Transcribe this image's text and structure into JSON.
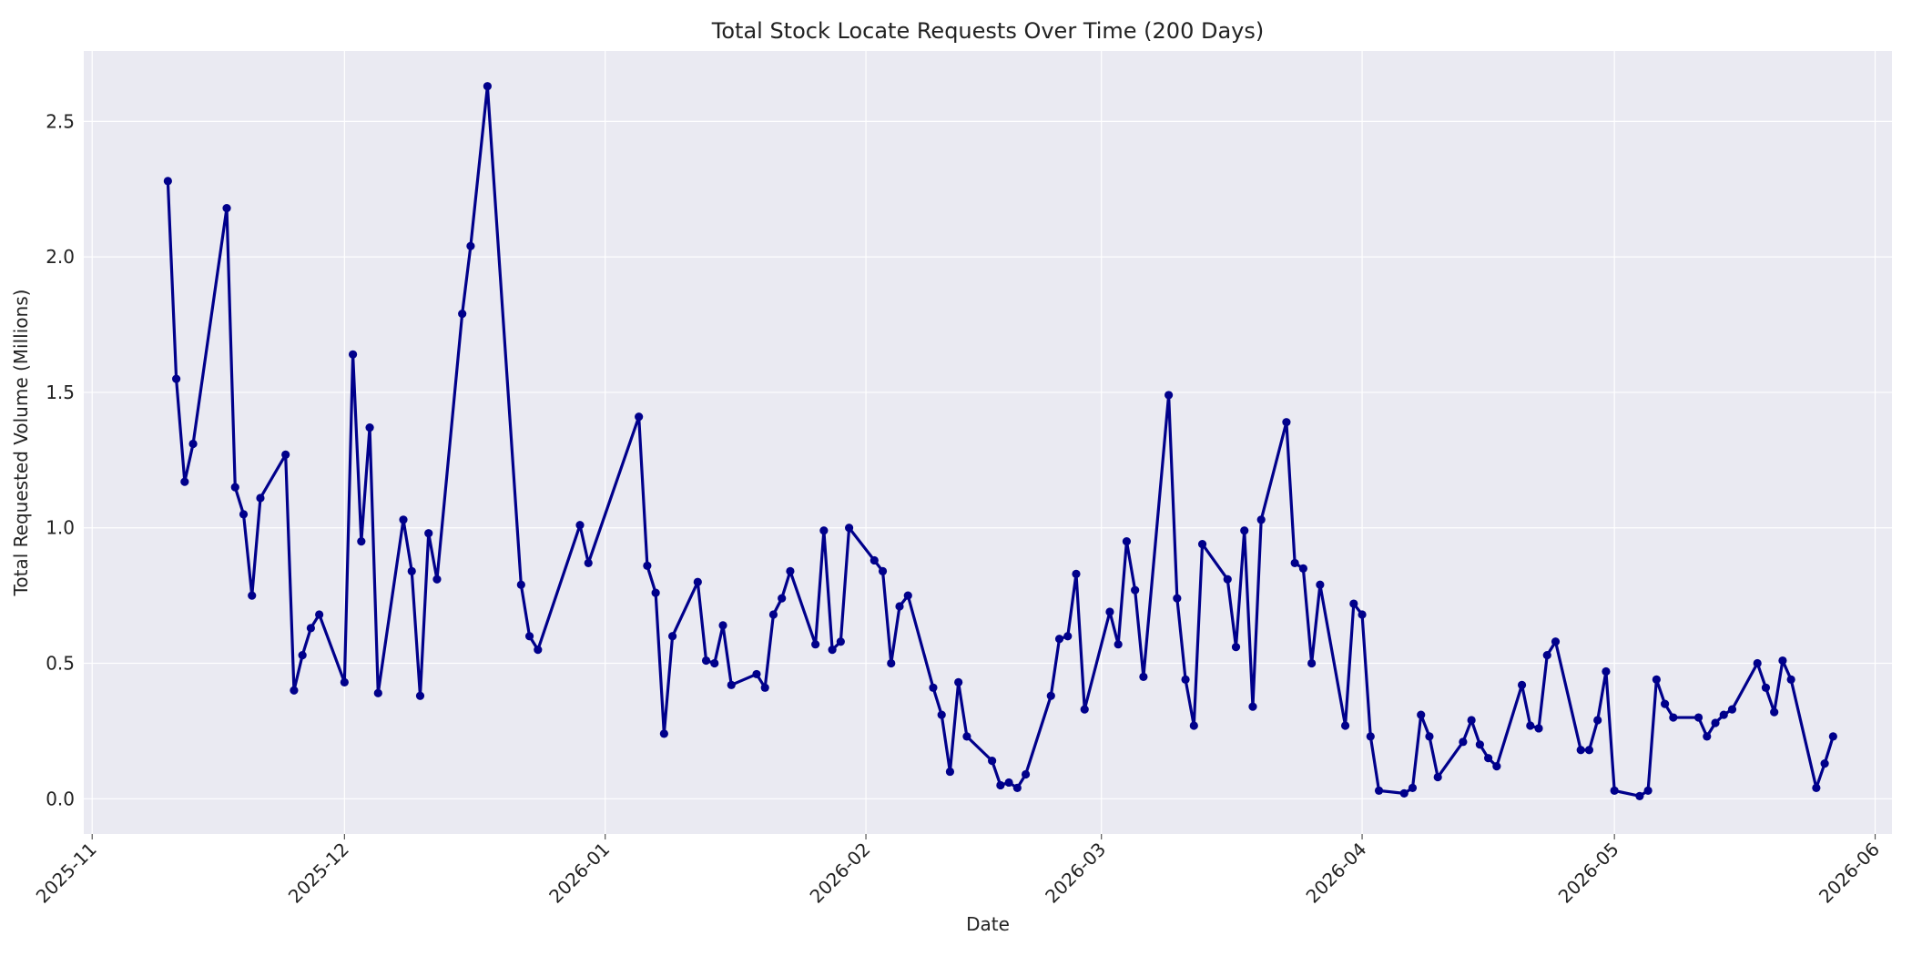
{
  "chart_data": {
    "type": "line",
    "title": "Total Stock Locate Requests Over Time (200 Days)",
    "xlabel": "Date",
    "ylabel": "Total Requested Volume (Millions)",
    "x_type": "date",
    "xlim": [
      "2025-10-31",
      "2026-06-03"
    ],
    "ylim": [
      -0.13,
      2.76
    ],
    "yticks": [
      0.0,
      0.5,
      1.0,
      1.5,
      2.0,
      2.5
    ],
    "ytick_labels": [
      "0.0",
      "0.5",
      "1.0",
      "1.5",
      "2.0",
      "2.5"
    ],
    "xticks": [
      "2025-11-01",
      "2025-12-01",
      "2026-01-01",
      "2026-02-01",
      "2026-03-01",
      "2026-04-01",
      "2026-05-01",
      "2026-06-01"
    ],
    "xtick_labels": [
      "2025-11",
      "2025-12",
      "2026-01",
      "2026-02",
      "2026-03",
      "2026-04",
      "2026-05",
      "2026-06"
    ],
    "grid": true,
    "colors": {
      "line": "#00008b",
      "plot_bg": "#eaeaf2",
      "grid": "#ffffff"
    },
    "series": [
      {
        "points": [
          [
            "2025-11-10",
            2.28
          ],
          [
            "2025-11-11",
            1.55
          ],
          [
            "2025-11-12",
            1.17
          ],
          [
            "2025-11-13",
            1.31
          ],
          [
            "2025-11-17",
            2.18
          ],
          [
            "2025-11-18",
            1.15
          ],
          [
            "2025-11-19",
            1.05
          ],
          [
            "2025-11-20",
            0.75
          ],
          [
            "2025-11-21",
            1.11
          ],
          [
            "2025-11-24",
            1.27
          ],
          [
            "2025-11-25",
            0.4
          ],
          [
            "2025-11-26",
            0.53
          ],
          [
            "2025-11-27",
            0.63
          ],
          [
            "2025-11-28",
            0.68
          ],
          [
            "2025-12-01",
            0.43
          ],
          [
            "2025-12-02",
            1.64
          ],
          [
            "2025-12-03",
            0.95
          ],
          [
            "2025-12-04",
            1.37
          ],
          [
            "2025-12-05",
            0.39
          ],
          [
            "2025-12-08",
            1.03
          ],
          [
            "2025-12-09",
            0.84
          ],
          [
            "2025-12-10",
            0.38
          ],
          [
            "2025-12-11",
            0.98
          ],
          [
            "2025-12-12",
            0.81
          ],
          [
            "2025-12-15",
            1.79
          ],
          [
            "2025-12-16",
            2.04
          ],
          [
            "2025-12-18",
            2.63
          ],
          [
            "2025-12-22",
            0.79
          ],
          [
            "2025-12-23",
            0.6
          ],
          [
            "2025-12-24",
            0.55
          ],
          [
            "2025-12-29",
            1.01
          ],
          [
            "2025-12-30",
            0.87
          ],
          [
            "2026-01-05",
            1.41
          ],
          [
            "2026-01-06",
            0.86
          ],
          [
            "2026-01-07",
            0.76
          ],
          [
            "2026-01-08",
            0.24
          ],
          [
            "2026-01-09",
            0.6
          ],
          [
            "2026-01-12",
            0.8
          ],
          [
            "2026-01-13",
            0.51
          ],
          [
            "2026-01-14",
            0.5
          ],
          [
            "2026-01-15",
            0.64
          ],
          [
            "2026-01-16",
            0.42
          ],
          [
            "2026-01-19",
            0.46
          ],
          [
            "2026-01-20",
            0.41
          ],
          [
            "2026-01-21",
            0.68
          ],
          [
            "2026-01-22",
            0.74
          ],
          [
            "2026-01-23",
            0.84
          ],
          [
            "2026-01-26",
            0.57
          ],
          [
            "2026-01-27",
            0.99
          ],
          [
            "2026-01-28",
            0.55
          ],
          [
            "2026-01-29",
            0.58
          ],
          [
            "2026-01-30",
            1.0
          ],
          [
            "2026-02-02",
            0.88
          ],
          [
            "2026-02-03",
            0.84
          ],
          [
            "2026-02-04",
            0.5
          ],
          [
            "2026-02-05",
            0.71
          ],
          [
            "2026-02-06",
            0.75
          ],
          [
            "2026-02-09",
            0.41
          ],
          [
            "2026-02-10",
            0.31
          ],
          [
            "2026-02-11",
            0.1
          ],
          [
            "2026-02-12",
            0.43
          ],
          [
            "2026-02-13",
            0.23
          ],
          [
            "2026-02-16",
            0.14
          ],
          [
            "2026-02-17",
            0.05
          ],
          [
            "2026-02-18",
            0.06
          ],
          [
            "2026-02-19",
            0.04
          ],
          [
            "2026-02-20",
            0.09
          ],
          [
            "2026-02-23",
            0.38
          ],
          [
            "2026-02-24",
            0.59
          ],
          [
            "2026-02-25",
            0.6
          ],
          [
            "2026-02-26",
            0.83
          ],
          [
            "2026-02-27",
            0.33
          ],
          [
            "2026-03-02",
            0.69
          ],
          [
            "2026-03-03",
            0.57
          ],
          [
            "2026-03-04",
            0.95
          ],
          [
            "2026-03-05",
            0.77
          ],
          [
            "2026-03-06",
            0.45
          ],
          [
            "2026-03-09",
            1.49
          ],
          [
            "2026-03-10",
            0.74
          ],
          [
            "2026-03-11",
            0.44
          ],
          [
            "2026-03-12",
            0.27
          ],
          [
            "2026-03-13",
            0.94
          ],
          [
            "2026-03-16",
            0.81
          ],
          [
            "2026-03-17",
            0.56
          ],
          [
            "2026-03-18",
            0.99
          ],
          [
            "2026-03-19",
            0.34
          ],
          [
            "2026-03-20",
            1.03
          ],
          [
            "2026-03-23",
            1.39
          ],
          [
            "2026-03-24",
            0.87
          ],
          [
            "2026-03-25",
            0.85
          ],
          [
            "2026-03-26",
            0.5
          ],
          [
            "2026-03-27",
            0.79
          ],
          [
            "2026-03-30",
            0.27
          ],
          [
            "2026-03-31",
            0.72
          ],
          [
            "2026-04-01",
            0.68
          ],
          [
            "2026-04-02",
            0.23
          ],
          [
            "2026-04-03",
            0.03
          ],
          [
            "2026-04-06",
            0.02
          ],
          [
            "2026-04-07",
            0.04
          ],
          [
            "2026-04-08",
            0.31
          ],
          [
            "2026-04-09",
            0.23
          ],
          [
            "2026-04-10",
            0.08
          ],
          [
            "2026-04-13",
            0.21
          ],
          [
            "2026-04-14",
            0.29
          ],
          [
            "2026-04-15",
            0.2
          ],
          [
            "2026-04-16",
            0.15
          ],
          [
            "2026-04-17",
            0.12
          ],
          [
            "2026-04-20",
            0.42
          ],
          [
            "2026-04-21",
            0.27
          ],
          [
            "2026-04-22",
            0.26
          ],
          [
            "2026-04-23",
            0.53
          ],
          [
            "2026-04-24",
            0.58
          ],
          [
            "2026-04-27",
            0.18
          ],
          [
            "2026-04-28",
            0.18
          ],
          [
            "2026-04-29",
            0.29
          ],
          [
            "2026-04-30",
            0.47
          ],
          [
            "2026-05-01",
            0.03
          ],
          [
            "2026-05-04",
            0.01
          ],
          [
            "2026-05-05",
            0.03
          ],
          [
            "2026-05-06",
            0.44
          ],
          [
            "2026-05-07",
            0.35
          ],
          [
            "2026-05-08",
            0.3
          ],
          [
            "2026-05-11",
            0.3
          ],
          [
            "2026-05-12",
            0.23
          ],
          [
            "2026-05-13",
            0.28
          ],
          [
            "2026-05-14",
            0.31
          ],
          [
            "2026-05-15",
            0.33
          ],
          [
            "2026-05-18",
            0.5
          ],
          [
            "2026-05-19",
            0.41
          ],
          [
            "2026-05-20",
            0.32
          ],
          [
            "2026-05-21",
            0.51
          ],
          [
            "2026-05-22",
            0.44
          ],
          [
            "2026-05-25",
            0.04
          ],
          [
            "2026-05-26",
            0.13
          ],
          [
            "2026-05-27",
            0.23
          ]
        ]
      }
    ]
  }
}
